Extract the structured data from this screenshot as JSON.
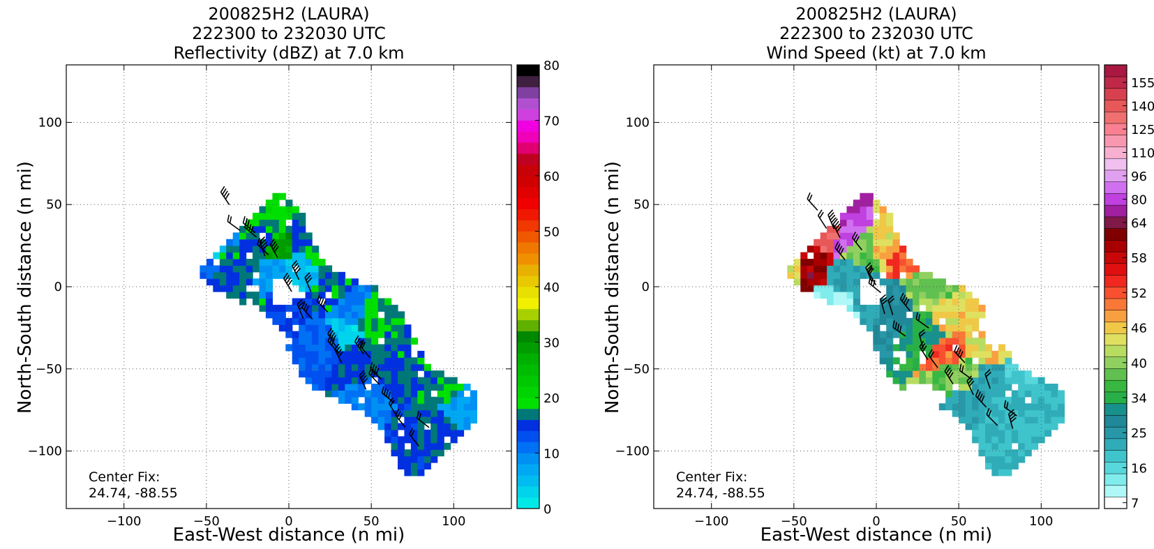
{
  "chart_data": [
    {
      "type": "heatmap",
      "title_line1": "200825H2 (LAURA)",
      "title_line2": "222300 to 232030 UTC",
      "title_line3": "Reflectivity (dBZ) at 7.0 km",
      "xlabel": "East-West distance (n mi)",
      "ylabel": "North-South distance (n mi)",
      "xlim": [
        -135,
        135
      ],
      "ylim": [
        -135,
        135
      ],
      "xticks": [
        -100,
        -50,
        0,
        50,
        100
      ],
      "xtick_labels": [
        "−100",
        "−50",
        "0",
        "50",
        "100"
      ],
      "yticks": [
        -100,
        -50,
        0,
        50,
        100
      ],
      "ytick_labels": [
        "−100",
        "−50",
        "0",
        "50",
        "100"
      ],
      "grid": true,
      "center_fix_label": "Center Fix:",
      "center_fix_value": "24.74, -88.55",
      "colorbar": {
        "min": 0,
        "max": 80,
        "step": 2.5,
        "tick_values": [
          0,
          10,
          20,
          30,
          40,
          50,
          60,
          70,
          80
        ],
        "tick_labels": [
          "0",
          "10",
          "20",
          "30",
          "40",
          "50",
          "60",
          "70",
          "80"
        ],
        "colors": [
          "#00e8e8",
          "#00d4ec",
          "#00bcf0",
          "#00a8f4",
          "#0090f4",
          "#0070f4",
          "#0050f0",
          "#0030e0",
          "#007878",
          "#00e000",
          "#00d400",
          "#00c800",
          "#00bc00",
          "#00b000",
          "#009c00",
          "#008800",
          "#60b000",
          "#a8d000",
          "#f0f000",
          "#e8e000",
          "#e8c800",
          "#e8b000",
          "#f09000",
          "#f07800",
          "#f05800",
          "#f03800",
          "#f01800",
          "#f00000",
          "#e00000",
          "#d00000",
          "#c80008",
          "#c00020",
          "#e00070",
          "#f000b8",
          "#f000e0",
          "#d040e0",
          "#b050d0",
          "#8040a0",
          "#402040",
          "#000000"
        ]
      },
      "points": [
        {
          "x": -50,
          "y": 25,
          "v": 5
        },
        {
          "x": -42,
          "y": 35,
          "v": 12
        },
        {
          "x": -35,
          "y": 45,
          "v": 7
        },
        {
          "x": -55,
          "y": 15,
          "v": 14
        },
        {
          "x": -28,
          "y": 38,
          "v": 22
        },
        {
          "x": -20,
          "y": 30,
          "v": 20
        },
        {
          "x": -10,
          "y": 34,
          "v": 24
        },
        {
          "x": 5,
          "y": 28,
          "v": 21
        },
        {
          "x": 15,
          "y": 20,
          "v": 23
        },
        {
          "x": -32,
          "y": 12,
          "v": 21
        },
        {
          "x": -12,
          "y": 5,
          "v": 10
        },
        {
          "x": 5,
          "y": 8,
          "v": 6
        },
        {
          "x": -38,
          "y": 0,
          "v": 20
        },
        {
          "x": -25,
          "y": -20,
          "v": 22
        },
        {
          "x": -5,
          "y": -15,
          "v": 18
        },
        {
          "x": 25,
          "y": -5,
          "v": 21
        },
        {
          "x": 35,
          "y": -15,
          "v": 12
        },
        {
          "x": 30,
          "y": -30,
          "v": 4
        },
        {
          "x": 50,
          "y": -20,
          "v": 22
        },
        {
          "x": 40,
          "y": -45,
          "v": 20
        },
        {
          "x": 60,
          "y": -40,
          "v": 21
        },
        {
          "x": 65,
          "y": -60,
          "v": 20
        },
        {
          "x": 50,
          "y": -72,
          "v": 12
        },
        {
          "x": 80,
          "y": -55,
          "v": 21
        },
        {
          "x": 95,
          "y": -65,
          "v": 22
        },
        {
          "x": 100,
          "y": -72,
          "v": 10
        },
        {
          "x": 70,
          "y": -90,
          "v": 19
        },
        {
          "x": 85,
          "y": -88,
          "v": 20
        },
        {
          "x": -5,
          "y": 25,
          "v": 36
        },
        {
          "x": 20,
          "y": -35,
          "v": 15
        }
      ]
    },
    {
      "type": "heatmap",
      "title_line1": "200825H2 (LAURA)",
      "title_line2": "222300 to 232030 UTC",
      "title_line3": "Wind Speed (kt) at 7.0 km",
      "xlabel": "East-West distance (n mi)",
      "ylabel": "North-South distance (n mi)",
      "xlim": [
        -135,
        135
      ],
      "ylim": [
        -135,
        135
      ],
      "xticks": [
        -100,
        -50,
        0,
        50,
        100
      ],
      "xtick_labels": [
        "−100",
        "−50",
        "0",
        "50",
        "100"
      ],
      "yticks": [
        -100,
        -50,
        0,
        50,
        100
      ],
      "ytick_labels": [
        "−100",
        "−50",
        "0",
        "50",
        "100"
      ],
      "grid": true,
      "center_fix_label": "Center Fix:",
      "center_fix_value": "24.74, -88.55",
      "colorbar": {
        "boundaries": [
          7,
          10,
          13,
          16,
          19,
          22,
          25,
          28,
          31,
          34,
          36,
          38,
          40,
          42,
          44,
          46,
          48,
          50,
          52,
          54,
          56,
          58,
          60,
          62,
          64,
          72,
          80,
          88,
          96,
          103,
          110,
          118,
          125,
          133,
          140,
          148,
          155,
          162
        ],
        "tick_values": [
          7,
          16,
          25,
          34,
          40,
          46,
          52,
          58,
          64,
          80,
          96,
          110,
          125,
          140,
          155
        ],
        "tick_labels": [
          "7",
          "16",
          "25",
          "34",
          "40",
          "46",
          "52",
          "58",
          "64",
          "80",
          "96",
          "110",
          "125",
          "140",
          "155"
        ],
        "colors": [
          "#ffffff",
          "#b0f8f8",
          "#80ecec",
          "#58d8dc",
          "#40c4cc",
          "#30acb8",
          "#2898a8",
          "#208898",
          "#18908c",
          "#28b048",
          "#38b840",
          "#60c050",
          "#90d060",
          "#b8dc60",
          "#e0e060",
          "#f0c848",
          "#f8a040",
          "#f87838",
          "#f85030",
          "#f02820",
          "#e01010",
          "#c80808",
          "#a80000",
          "#800000",
          "#801848",
          "#a020a0",
          "#c040e0",
          "#d070f0",
          "#e0a0f0",
          "#f0c0f0",
          "#f8b0d0",
          "#f898b0",
          "#f88090",
          "#f07070",
          "#e85858",
          "#d84050",
          "#c02848",
          "#a81840"
        ]
      },
      "points": [
        {
          "x": -50,
          "y": 28,
          "v": 52
        },
        {
          "x": -45,
          "y": 38,
          "v": 56
        },
        {
          "x": -36,
          "y": 44,
          "v": 50
        },
        {
          "x": -52,
          "y": 15,
          "v": 46
        },
        {
          "x": -42,
          "y": 15,
          "v": 62
        },
        {
          "x": -32,
          "y": 30,
          "v": 140
        },
        {
          "x": -28,
          "y": 40,
          "v": 80
        },
        {
          "x": -20,
          "y": 28,
          "v": 88
        },
        {
          "x": -12,
          "y": 20,
          "v": 40
        },
        {
          "x": 5,
          "y": 24,
          "v": 46
        },
        {
          "x": 15,
          "y": 18,
          "v": 52
        },
        {
          "x": -18,
          "y": 5,
          "v": 25
        },
        {
          "x": -25,
          "y": -15,
          "v": 13
        },
        {
          "x": -5,
          "y": -10,
          "v": 25
        },
        {
          "x": 10,
          "y": -15,
          "v": 28
        },
        {
          "x": 28,
          "y": -5,
          "v": 40
        },
        {
          "x": 30,
          "y": -28,
          "v": 34
        },
        {
          "x": 40,
          "y": -22,
          "v": 46
        },
        {
          "x": 45,
          "y": -40,
          "v": 52
        },
        {
          "x": 50,
          "y": -55,
          "v": 40
        },
        {
          "x": 60,
          "y": -40,
          "v": 46
        },
        {
          "x": 65,
          "y": -60,
          "v": 25
        },
        {
          "x": 75,
          "y": -70,
          "v": 22
        },
        {
          "x": 85,
          "y": -60,
          "v": 19
        },
        {
          "x": 95,
          "y": -68,
          "v": 22
        },
        {
          "x": 70,
          "y": -88,
          "v": 22
        },
        {
          "x": 55,
          "y": -75,
          "v": 25
        }
      ]
    }
  ]
}
